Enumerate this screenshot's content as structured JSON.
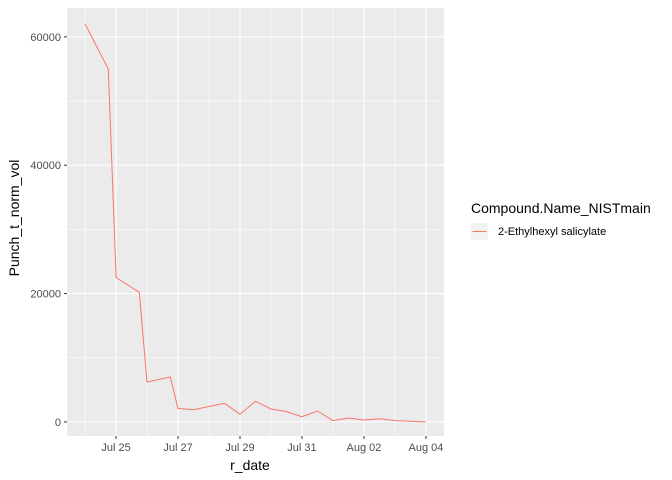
{
  "chart_data": {
    "type": "line",
    "xlabel": "r_date",
    "ylabel": "Punch_t_norm_vol",
    "x_tick_labels": [
      "Jul 25",
      "Jul 27",
      "Jul 29",
      "Jul 31",
      "Aug 02",
      "Aug 04"
    ],
    "y_tick_labels": [
      "0",
      "20000",
      "40000",
      "60000"
    ],
    "y_ticks": [
      0,
      20000,
      40000,
      60000
    ],
    "x_ticks": [
      "2000-07-25",
      "2000-07-27",
      "2000-07-29",
      "2000-07-31",
      "2000-08-02",
      "2000-08-04"
    ],
    "xlim": [
      "2000-07-23T10:00",
      "2000-08-04T14:00"
    ],
    "ylim": [
      -2200,
      64500
    ],
    "grid": true,
    "legend": {
      "title": "Compound.Name_NISTmain",
      "position": "right"
    },
    "series": [
      {
        "name": "2-Ethylhexyl salicylate",
        "color": "#F8766D",
        "x": [
          "2000-07-24",
          "2000-07-24T18:00",
          "2000-07-25",
          "2000-07-25T18:00",
          "2000-07-26",
          "2000-07-26T18:00",
          "2000-07-27",
          "2000-07-27T12:00",
          "2000-07-28",
          "2000-07-28T12:00",
          "2000-07-29",
          "2000-07-29T12:00",
          "2000-07-30",
          "2000-07-30T12:00",
          "2000-07-31",
          "2000-07-31T12:00",
          "2000-08-01",
          "2000-08-01T12:00",
          "2000-08-02",
          "2000-08-02T12:00",
          "2000-08-03",
          "2000-08-03T12:00",
          "2000-08-04"
        ],
        "values": [
          62000,
          55000,
          22500,
          20200,
          6200,
          7000,
          2100,
          1900,
          2400,
          2900,
          1200,
          3200,
          2000,
          1600,
          800,
          1700,
          200,
          600,
          300,
          500,
          200,
          100,
          0
        ]
      }
    ]
  }
}
